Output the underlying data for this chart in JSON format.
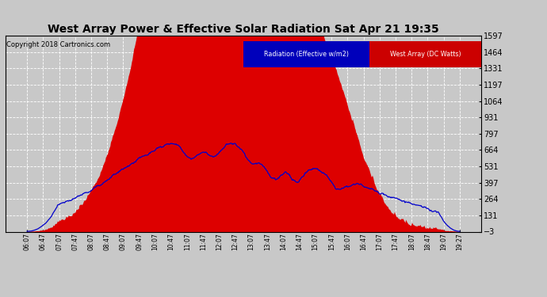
{
  "title": "West Array Power & Effective Solar Radiation Sat Apr 21 19:35",
  "copyright": "Copyright 2018 Cartronics.com",
  "legend_radiation": "Radiation (Effective w/m2)",
  "legend_westarray": "West Array (DC Watts)",
  "ymin": -2.6,
  "ymax": 1597.3,
  "yticks": [
    1597.3,
    1464.0,
    1330.7,
    1197.3,
    1064.0,
    930.7,
    797.4,
    664.0,
    530.7,
    397.4,
    264.0,
    130.7,
    -2.6
  ],
  "background_color": "#c8c8c8",
  "plot_bg_color": "#c8c8c8",
  "fill_color": "#dd0000",
  "line_color": "#0000cc",
  "title_color": "#000000",
  "grid_color": "#ffffff",
  "time_labels": [
    "06:07",
    "06:47",
    "07:07",
    "07:47",
    "08:07",
    "08:47",
    "09:07",
    "09:47",
    "10:07",
    "10:47",
    "11:07",
    "11:47",
    "12:07",
    "12:47",
    "13:07",
    "13:47",
    "14:07",
    "14:47",
    "15:07",
    "15:47",
    "16:07",
    "16:47",
    "17:07",
    "17:47",
    "18:07",
    "18:47",
    "19:07",
    "19:27"
  ]
}
